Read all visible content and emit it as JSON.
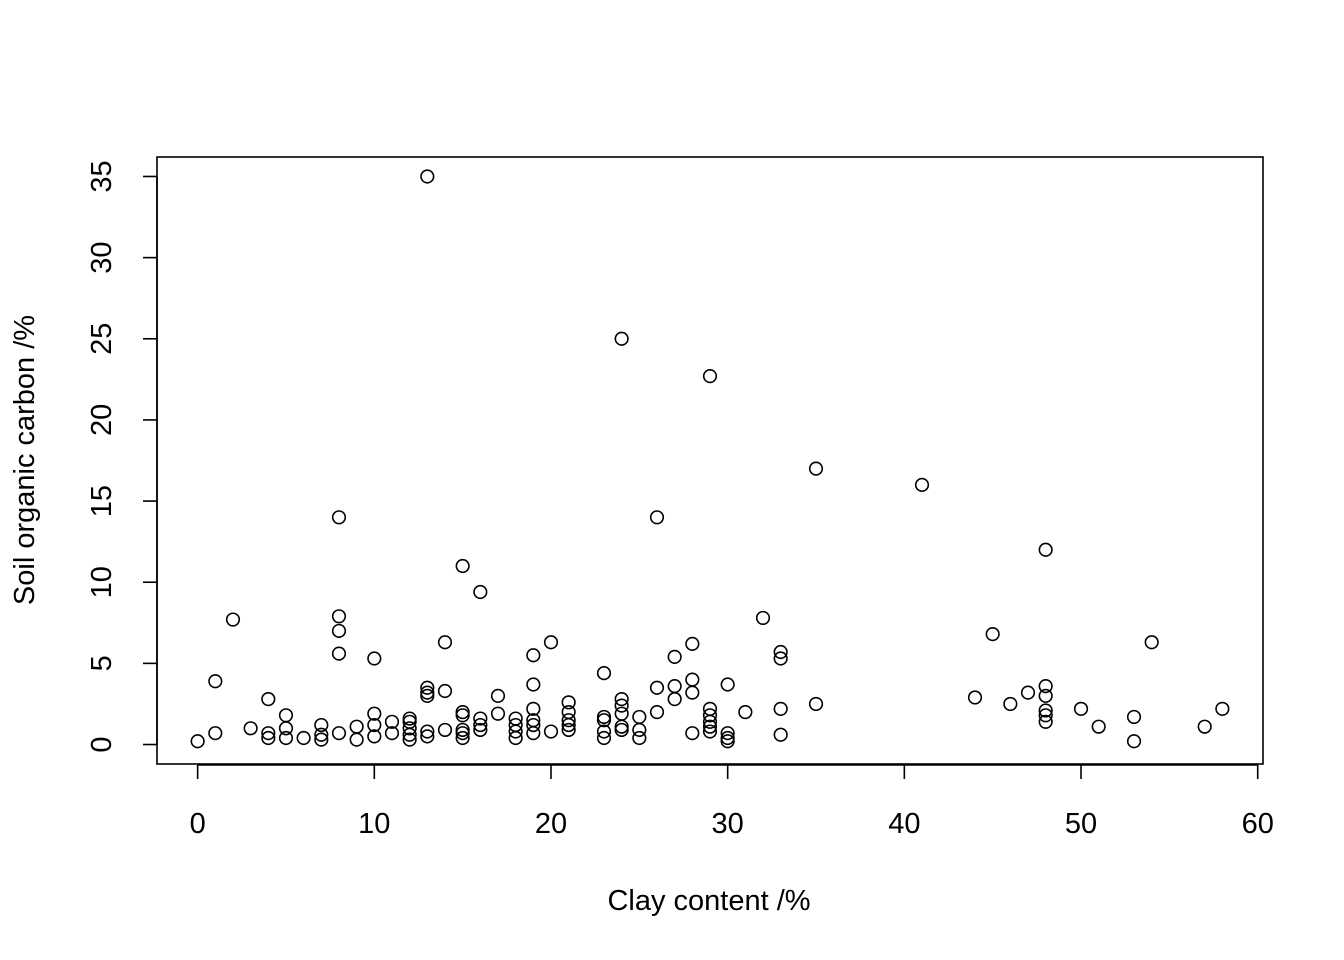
{
  "chart_data": {
    "type": "scatter",
    "title": "",
    "xlabel": "Clay content /%",
    "ylabel": "Soil organic carbon /%",
    "xlim": [
      -2.3,
      60.3
    ],
    "ylim": [
      -1.2,
      36.2
    ],
    "xticks": [
      0,
      10,
      20,
      30,
      40,
      50,
      60
    ],
    "yticks": [
      0,
      5,
      10,
      15,
      20,
      25,
      30,
      35
    ],
    "xtick_labels": [
      "0",
      "10",
      "20",
      "30",
      "40",
      "50",
      "60"
    ],
    "ytick_labels": [
      "0",
      "5",
      "10",
      "15",
      "20",
      "25",
      "30",
      "35"
    ],
    "marker": "open-circle",
    "marker_color": "#000000",
    "grid": false,
    "points": [
      [
        0,
        0.2
      ],
      [
        1,
        0.7
      ],
      [
        1,
        3.9
      ],
      [
        2,
        7.7
      ],
      [
        3,
        1.0
      ],
      [
        4,
        0.4
      ],
      [
        4,
        0.7
      ],
      [
        4,
        2.8
      ],
      [
        5,
        0.4
      ],
      [
        5,
        1.0
      ],
      [
        5,
        1.8
      ],
      [
        6,
        0.4
      ],
      [
        7,
        0.3
      ],
      [
        7,
        0.6
      ],
      [
        7,
        1.2
      ],
      [
        8,
        0.7
      ],
      [
        8,
        5.6
      ],
      [
        8,
        7.0
      ],
      [
        8,
        7.9
      ],
      [
        8,
        14.0
      ],
      [
        9,
        0.3
      ],
      [
        9,
        1.1
      ],
      [
        10,
        0.5
      ],
      [
        10,
        1.2
      ],
      [
        10,
        1.9
      ],
      [
        10,
        5.3
      ],
      [
        11,
        0.7
      ],
      [
        11,
        1.4
      ],
      [
        12,
        0.3
      ],
      [
        12,
        0.6
      ],
      [
        12,
        1.0
      ],
      [
        12,
        1.4
      ],
      [
        12,
        1.6
      ],
      [
        13,
        0.5
      ],
      [
        13,
        0.8
      ],
      [
        13,
        3.0
      ],
      [
        13,
        3.2
      ],
      [
        13,
        3.5
      ],
      [
        13,
        35.0
      ],
      [
        14,
        0.9
      ],
      [
        14,
        3.3
      ],
      [
        14,
        6.3
      ],
      [
        15,
        0.4
      ],
      [
        15,
        0.7
      ],
      [
        15,
        0.9
      ],
      [
        15,
        1.8
      ],
      [
        15,
        2.0
      ],
      [
        15,
        11.0
      ],
      [
        16,
        0.9
      ],
      [
        16,
        1.2
      ],
      [
        16,
        1.6
      ],
      [
        16,
        9.4
      ],
      [
        17,
        1.9
      ],
      [
        17,
        3.0
      ],
      [
        18,
        0.4
      ],
      [
        18,
        0.8
      ],
      [
        18,
        1.2
      ],
      [
        18,
        1.6
      ],
      [
        19,
        0.7
      ],
      [
        19,
        1.2
      ],
      [
        19,
        1.5
      ],
      [
        19,
        2.2
      ],
      [
        19,
        3.7
      ],
      [
        19,
        5.5
      ],
      [
        20,
        0.8
      ],
      [
        20,
        6.3
      ],
      [
        21,
        0.9
      ],
      [
        21,
        1.2
      ],
      [
        21,
        1.5
      ],
      [
        21,
        2.0
      ],
      [
        21,
        2.6
      ],
      [
        23,
        0.4
      ],
      [
        23,
        0.8
      ],
      [
        23,
        1.5
      ],
      [
        23,
        1.7
      ],
      [
        23,
        4.4
      ],
      [
        24,
        0.9
      ],
      [
        24,
        1.1
      ],
      [
        24,
        1.9
      ],
      [
        24,
        2.4
      ],
      [
        24,
        2.8
      ],
      [
        24,
        25.0
      ],
      [
        25,
        0.4
      ],
      [
        25,
        0.9
      ],
      [
        25,
        1.7
      ],
      [
        26,
        2.0
      ],
      [
        26,
        3.5
      ],
      [
        26,
        14.0
      ],
      [
        27,
        2.8
      ],
      [
        27,
        3.6
      ],
      [
        27,
        5.4
      ],
      [
        28,
        0.7
      ],
      [
        28,
        3.2
      ],
      [
        28,
        4.0
      ],
      [
        28,
        6.2
      ],
      [
        29,
        0.8
      ],
      [
        29,
        1.1
      ],
      [
        29,
        1.4
      ],
      [
        29,
        1.8
      ],
      [
        29,
        2.2
      ],
      [
        29,
        22.7
      ],
      [
        30,
        0.2
      ],
      [
        30,
        0.4
      ],
      [
        30,
        0.7
      ],
      [
        30,
        3.7
      ],
      [
        31,
        2.0
      ],
      [
        32,
        7.8
      ],
      [
        33,
        0.6
      ],
      [
        33,
        2.2
      ],
      [
        33,
        5.3
      ],
      [
        33,
        5.7
      ],
      [
        35,
        2.5
      ],
      [
        35,
        17.0
      ],
      [
        41,
        16.0
      ],
      [
        44,
        2.9
      ],
      [
        45,
        6.8
      ],
      [
        46,
        2.5
      ],
      [
        47,
        3.2
      ],
      [
        48,
        1.4
      ],
      [
        48,
        1.8
      ],
      [
        48,
        2.1
      ],
      [
        48,
        3.0
      ],
      [
        48,
        3.6
      ],
      [
        48,
        12.0
      ],
      [
        50,
        2.2
      ],
      [
        51,
        1.1
      ],
      [
        53,
        0.2
      ],
      [
        53,
        1.7
      ],
      [
        54,
        6.3
      ],
      [
        57,
        1.1
      ],
      [
        58,
        2.2
      ]
    ]
  }
}
